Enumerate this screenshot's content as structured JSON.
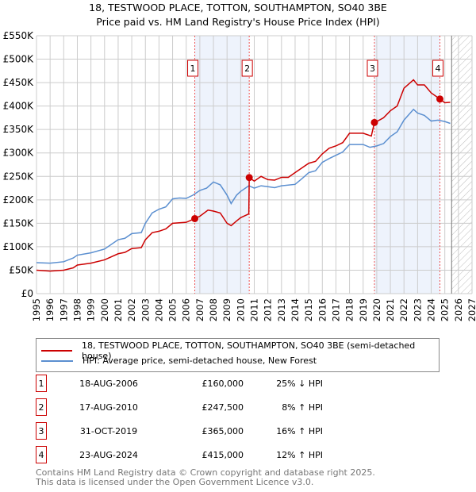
{
  "chart_data": {
    "type": "line",
    "title": "18, TESTWOOD PLACE, TOTTON, SOUTHAMPTON, SO40 3BE",
    "subtitle": "Price paid vs. HM Land Registry's House Price Index (HPI)",
    "xlim": [
      1995,
      2027
    ],
    "ylim": [
      0,
      550000
    ],
    "yticks": [
      0,
      50000,
      100000,
      150000,
      200000,
      250000,
      300000,
      350000,
      400000,
      450000,
      500000,
      550000
    ],
    "ytick_labels": [
      "£0",
      "£50K",
      "£100K",
      "£150K",
      "£200K",
      "£250K",
      "£300K",
      "£350K",
      "£400K",
      "£450K",
      "£500K",
      "£550K"
    ],
    "xticks": [
      1995,
      1996,
      1997,
      1998,
      1999,
      2000,
      2001,
      2002,
      2003,
      2004,
      2005,
      2006,
      2007,
      2008,
      2009,
      2010,
      2011,
      2012,
      2013,
      2014,
      2015,
      2016,
      2017,
      2018,
      2019,
      2020,
      2021,
      2022,
      2023,
      2024,
      2025,
      2026,
      2027
    ],
    "grid": true,
    "shaded_ranges": [
      [
        2006.63,
        2010.63
      ],
      [
        2019.83,
        2024.64
      ]
    ],
    "forecast_from": 2025.5,
    "series": [
      {
        "name": "18, TESTWOOD PLACE, TOTTON, SOUTHAMPTON, SO40 3BE (semi-detached house)",
        "color": "#cc0000",
        "x": [
          1995,
          1996,
          1997,
          1997.7,
          1998,
          1999,
          2000,
          2001,
          2001.5,
          2002,
          2002.7,
          2003,
          2003.5,
          2004,
          2004.5,
          2005,
          2006,
          2006.63,
          2007,
          2007.6,
          2008,
          2008.5,
          2009,
          2009.3,
          2009.7,
          2010,
          2010.6,
          2010.63,
          2011,
          2011.5,
          2012,
          2012.5,
          2013,
          2013.5,
          2014,
          2014.5,
          2015,
          2015.5,
          2016,
          2016.5,
          2017,
          2017.5,
          2018,
          2019,
          2019.6,
          2019.83,
          2020,
          2020.5,
          2021,
          2021.5,
          2022,
          2022.7,
          2023,
          2023.5,
          2024,
          2024.64,
          2025,
          2025.4
        ],
        "y": [
          50000,
          48000,
          50000,
          55000,
          61000,
          65000,
          72000,
          85000,
          88000,
          96000,
          98000,
          115000,
          130000,
          133000,
          138000,
          150000,
          152000,
          160000,
          165000,
          178000,
          176000,
          172000,
          150000,
          145000,
          155000,
          162000,
          170000,
          247500,
          240000,
          250000,
          243000,
          242000,
          248000,
          248000,
          258000,
          268000,
          278000,
          282000,
          298000,
          310000,
          315000,
          322000,
          342000,
          342000,
          336000,
          365000,
          367000,
          375000,
          390000,
          400000,
          438000,
          456000,
          445000,
          445000,
          428000,
          415000,
          407000,
          408000
        ]
      },
      {
        "name": "HPI: Average price, semi-detached house, New Forest",
        "color": "#5b8fd0",
        "x": [
          1995,
          1996,
          1997,
          1997.7,
          1998,
          1999,
          2000,
          2001,
          2001.5,
          2002,
          2002.7,
          2003,
          2003.5,
          2004,
          2004.5,
          2005,
          2005.5,
          2006,
          2006.5,
          2007,
          2007.5,
          2008,
          2008.5,
          2009,
          2009.3,
          2009.7,
          2010,
          2010.6,
          2011,
          2011.5,
          2012,
          2012.5,
          2013,
          2014,
          2014.5,
          2015,
          2015.5,
          2016,
          2016.5,
          2017,
          2017.5,
          2018,
          2019,
          2019.5,
          2020,
          2020.5,
          2021,
          2021.5,
          2022,
          2022.7,
          2023,
          2023.5,
          2024,
          2024.5,
          2025,
          2025.4
        ],
        "y": [
          66000,
          65000,
          68000,
          76000,
          82000,
          87000,
          95000,
          115000,
          118000,
          128000,
          130000,
          150000,
          172000,
          180000,
          185000,
          202000,
          204000,
          203000,
          210000,
          220000,
          225000,
          238000,
          232000,
          210000,
          192000,
          210000,
          218000,
          230000,
          225000,
          230000,
          228000,
          226000,
          230000,
          233000,
          245000,
          258000,
          262000,
          280000,
          288000,
          295000,
          302000,
          318000,
          318000,
          312000,
          315000,
          320000,
          335000,
          345000,
          370000,
          393000,
          385000,
          380000,
          368000,
          370000,
          367000,
          363000
        ]
      }
    ],
    "sales": [
      {
        "label": "1",
        "x": 2006.63,
        "y": 160000,
        "date": "18-AUG-2006",
        "price": "£160,000",
        "hpi": "25% ↓ HPI"
      },
      {
        "label": "2",
        "x": 2010.63,
        "y": 247500,
        "date": "17-AUG-2010",
        "price": "£247,500",
        "hpi": "8% ↑ HPI"
      },
      {
        "label": "3",
        "x": 2019.83,
        "y": 365000,
        "date": "31-OCT-2019",
        "price": "£365,000",
        "hpi": "16% ↑ HPI"
      },
      {
        "label": "4",
        "x": 2024.64,
        "y": 415000,
        "date": "23-AUG-2024",
        "price": "£415,000",
        "hpi": "12% ↑ HPI"
      }
    ]
  },
  "footer": {
    "line1": "Contains HM Land Registry data © Crown copyright and database right 2025.",
    "line2": "This data is licensed under the Open Government Licence v3.0."
  }
}
